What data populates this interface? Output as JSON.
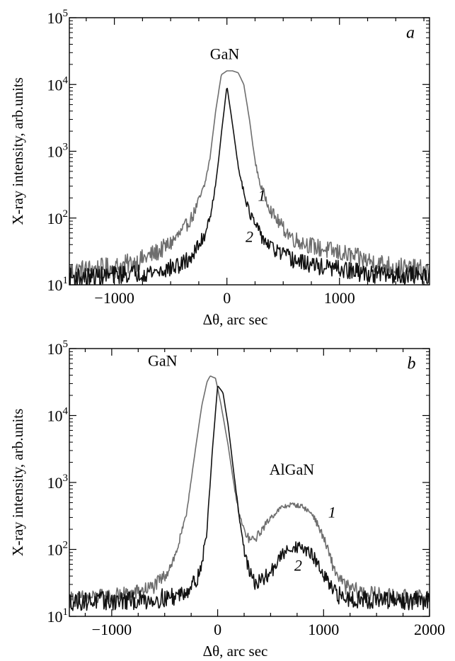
{
  "chart_data": [
    {
      "type": "line",
      "panel": "a",
      "xlabel": "Δθ, arc sec",
      "ylabel": "X-ray intensity, arb.units",
      "xlim": [
        -1400,
        1800
      ],
      "ylim": [
        10,
        100000
      ],
      "yscale": "log",
      "grid": false,
      "x_ticks": [
        -1000,
        0,
        1000
      ],
      "x_tick_labels": [
        "−1000",
        "0",
        "1000"
      ],
      "y_ticks": [
        10,
        100,
        1000,
        10000,
        100000
      ],
      "y_tick_labels": [
        {
          "base": "10",
          "exp": "1"
        },
        {
          "base": "10",
          "exp": "2"
        },
        {
          "base": "10",
          "exp": "3"
        },
        {
          "base": "10",
          "exp": "4"
        },
        {
          "base": "10",
          "exp": "5"
        }
      ],
      "annotations": [
        {
          "text": "GaN",
          "x": -20,
          "y": 24000
        },
        {
          "text": "a",
          "x": 1630,
          "y": 50000
        }
      ],
      "series": [
        {
          "name": "1",
          "label_pos": {
            "x": 310,
            "y": 180
          },
          "color": "#6e6e6e",
          "noise": 0.18,
          "x": [
            -1400,
            -1200,
            -1000,
            -800,
            -600,
            -500,
            -400,
            -300,
            -200,
            -150,
            -100,
            -50,
            0,
            50,
            100,
            150,
            200,
            250,
            300,
            400,
            500,
            600,
            800,
            1000,
            1200,
            1400,
            1600,
            1800
          ],
          "y": [
            16,
            17,
            18,
            22,
            32,
            42,
            62,
            110,
            300,
            800,
            4000,
            14000,
            16000,
            16000,
            15000,
            10000,
            3000,
            700,
            300,
            120,
            70,
            48,
            36,
            30,
            24,
            20,
            17,
            16
          ]
        },
        {
          "name": "2",
          "label_pos": {
            "x": 200,
            "y": 44
          },
          "color": "#111111",
          "noise": 0.15,
          "x": [
            -1400,
            -1200,
            -1000,
            -800,
            -600,
            -400,
            -300,
            -200,
            -150,
            -100,
            -50,
            0,
            50,
            100,
            150,
            200,
            300,
            400,
            600,
            800,
            1000,
            1200,
            1400,
            1600,
            1800
          ],
          "y": [
            13,
            13,
            14,
            15,
            16,
            20,
            28,
            55,
            110,
            300,
            1800,
            9500,
            2500,
            600,
            250,
            120,
            55,
            35,
            23,
            19,
            17,
            15,
            14,
            14,
            14
          ]
        }
      ]
    },
    {
      "type": "line",
      "panel": "b",
      "xlabel": "Δθ, arc sec",
      "ylabel": "X-ray intensity, arb.units",
      "xlim": [
        -1400,
        2000
      ],
      "ylim": [
        10,
        100000
      ],
      "yscale": "log",
      "grid": false,
      "x_ticks": [
        -1000,
        0,
        1000,
        2000
      ],
      "x_tick_labels": [
        "−1000",
        "0",
        "1000",
        "2000"
      ],
      "y_ticks": [
        10,
        100,
        1000,
        10000,
        100000
      ],
      "y_tick_labels": [
        {
          "base": "10",
          "exp": "1"
        },
        {
          "base": "10",
          "exp": "2"
        },
        {
          "base": "10",
          "exp": "3"
        },
        {
          "base": "10",
          "exp": "4"
        },
        {
          "base": "10",
          "exp": "5"
        }
      ],
      "annotations": [
        {
          "text": "GaN",
          "x": -520,
          "y": 55000
        },
        {
          "text": "AlGaN",
          "x": 700,
          "y": 1300
        },
        {
          "text": "b",
          "x": 1830,
          "y": 50000
        }
      ],
      "series": [
        {
          "name": "1",
          "label_pos": {
            "x": 1080,
            "y": 300
          },
          "color": "#6e6e6e",
          "noise": 0.14,
          "x": [
            -1400,
            -1200,
            -1000,
            -800,
            -600,
            -500,
            -400,
            -300,
            -200,
            -150,
            -100,
            -70,
            -20,
            30,
            100,
            150,
            200,
            250,
            300,
            350,
            400,
            500,
            600,
            700,
            800,
            900,
            1000,
            1100,
            1200,
            1400,
            1600,
            1800,
            2000
          ],
          "y": [
            18,
            19,
            20,
            22,
            28,
            40,
            80,
            300,
            4000,
            14000,
            32000,
            39000,
            36000,
            15000,
            3500,
            1000,
            350,
            190,
            140,
            140,
            180,
            300,
            420,
            470,
            440,
            330,
            150,
            50,
            28,
            22,
            20,
            19,
            19
          ]
        },
        {
          "name": "2",
          "label_pos": {
            "x": 760,
            "y": 48
          },
          "color": "#111111",
          "noise": 0.16,
          "x": [
            -1400,
            -1200,
            -1000,
            -800,
            -600,
            -400,
            -300,
            -200,
            -150,
            -100,
            -50,
            0,
            50,
            100,
            150,
            200,
            250,
            300,
            350,
            400,
            500,
            600,
            700,
            800,
            900,
            1000,
            1100,
            1200,
            1400,
            1600,
            1800,
            2000
          ],
          "y": [
            17,
            17,
            17,
            17,
            18,
            20,
            24,
            35,
            60,
            200,
            3000,
            28000,
            22000,
            7000,
            1500,
            350,
            100,
            45,
            32,
            32,
            45,
            80,
            110,
            105,
            80,
            40,
            22,
            19,
            18,
            17,
            17,
            17
          ]
        }
      ]
    }
  ]
}
